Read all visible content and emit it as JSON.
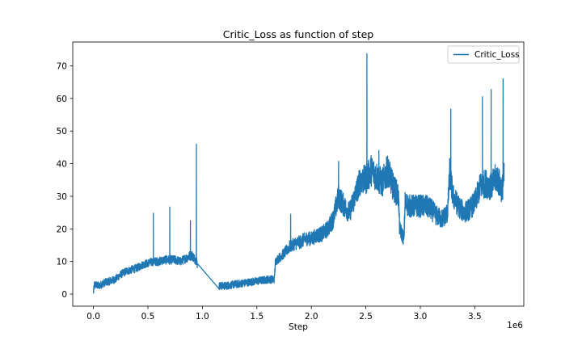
{
  "chart_data": {
    "type": "line",
    "title": "Critic_Loss as function of step",
    "xlabel": "Step",
    "ylabel": "",
    "x_offset_label": "1e6",
    "xlim": [
      -0.19,
      3.95
    ],
    "ylim": [
      -3.7,
      77.3
    ],
    "x_ticks": [
      {
        "value": 0.0,
        "label": "0.0"
      },
      {
        "value": 0.5,
        "label": "0.5"
      },
      {
        "value": 1.0,
        "label": "1.0"
      },
      {
        "value": 1.5,
        "label": "1.5"
      },
      {
        "value": 2.0,
        "label": "2.0"
      },
      {
        "value": 2.5,
        "label": "2.5"
      },
      {
        "value": 3.0,
        "label": "3.0"
      },
      {
        "value": 3.5,
        "label": "3.5"
      }
    ],
    "y_ticks": [
      {
        "value": 0,
        "label": "0"
      },
      {
        "value": 10,
        "label": "10"
      },
      {
        "value": 20,
        "label": "20"
      },
      {
        "value": 30,
        "label": "30"
      },
      {
        "value": 40,
        "label": "40"
      },
      {
        "value": 50,
        "label": "50"
      },
      {
        "value": 60,
        "label": "60"
      },
      {
        "value": 70,
        "label": "70"
      }
    ],
    "grid": false,
    "legend_position": "top-right",
    "series": [
      {
        "name": "Critic_Loss",
        "color": "#1f77b4",
        "trend": [
          [
            0.0,
            0.5
          ],
          [
            0.01,
            3.0
          ],
          [
            0.05,
            2.5
          ],
          [
            0.1,
            3.5
          ],
          [
            0.15,
            4.0
          ],
          [
            0.2,
            4.5
          ],
          [
            0.25,
            6.0
          ],
          [
            0.3,
            7.0
          ],
          [
            0.35,
            7.5
          ],
          [
            0.4,
            8.0
          ],
          [
            0.45,
            9.0
          ],
          [
            0.5,
            9.5
          ],
          [
            0.55,
            10.0
          ],
          [
            0.6,
            10.0
          ],
          [
            0.65,
            10.5
          ],
          [
            0.7,
            10.5
          ],
          [
            0.75,
            10.5
          ],
          [
            0.8,
            10.0
          ],
          [
            0.85,
            11.0
          ],
          [
            0.9,
            12.0
          ],
          [
            0.95,
            10.0
          ],
          [
            0.955,
            8.5
          ],
          [
            1.0,
            7.0
          ],
          [
            1.05,
            5.5
          ],
          [
            1.1,
            4.0
          ],
          [
            1.15,
            2.5
          ],
          [
            1.2,
            2.5
          ],
          [
            1.3,
            3.0
          ],
          [
            1.4,
            3.5
          ],
          [
            1.5,
            4.0
          ],
          [
            1.6,
            4.5
          ],
          [
            1.66,
            4.5
          ],
          [
            1.67,
            10.0
          ],
          [
            1.7,
            11.0
          ],
          [
            1.75,
            12.5
          ],
          [
            1.8,
            14.5
          ],
          [
            1.85,
            15.5
          ],
          [
            1.9,
            16.0
          ],
          [
            1.95,
            17.0
          ],
          [
            2.0,
            17.0
          ],
          [
            2.05,
            18.0
          ],
          [
            2.1,
            18.5
          ],
          [
            2.15,
            20.0
          ],
          [
            2.2,
            23.0
          ],
          [
            2.25,
            30.0
          ],
          [
            2.3,
            27.0
          ],
          [
            2.35,
            25.0
          ],
          [
            2.4,
            30.0
          ],
          [
            2.45,
            35.0
          ],
          [
            2.5,
            35.0
          ],
          [
            2.55,
            38.0
          ],
          [
            2.6,
            36.0
          ],
          [
            2.65,
            34.0
          ],
          [
            2.7,
            38.0
          ],
          [
            2.75,
            33.0
          ],
          [
            2.8,
            30.0
          ],
          [
            2.81,
            20.0
          ],
          [
            2.85,
            17.0
          ],
          [
            2.86,
            28.0
          ],
          [
            2.9,
            27.0
          ],
          [
            3.0,
            27.0
          ],
          [
            3.05,
            27.0
          ],
          [
            3.1,
            26.0
          ],
          [
            3.15,
            24.0
          ],
          [
            3.2,
            23.0
          ],
          [
            3.25,
            25.0
          ],
          [
            3.27,
            37.0
          ],
          [
            3.3,
            30.0
          ],
          [
            3.35,
            27.0
          ],
          [
            3.4,
            25.0
          ],
          [
            3.45,
            26.0
          ],
          [
            3.5,
            28.0
          ],
          [
            3.55,
            33.0
          ],
          [
            3.6,
            34.0
          ],
          [
            3.65,
            33.0
          ],
          [
            3.7,
            36.0
          ],
          [
            3.75,
            32.0
          ],
          [
            3.77,
            36.0
          ]
        ],
        "spikes": [
          [
            0.55,
            24.8
          ],
          [
            0.7,
            26.7
          ],
          [
            0.89,
            22.5
          ],
          [
            0.945,
            46.0
          ],
          [
            1.81,
            24.5
          ],
          [
            2.25,
            40.7
          ],
          [
            2.51,
            73.7
          ],
          [
            2.62,
            44.0
          ],
          [
            3.28,
            56.7
          ],
          [
            3.57,
            60.5
          ],
          [
            3.65,
            62.7
          ],
          [
            3.76,
            66.0
          ]
        ]
      }
    ]
  }
}
